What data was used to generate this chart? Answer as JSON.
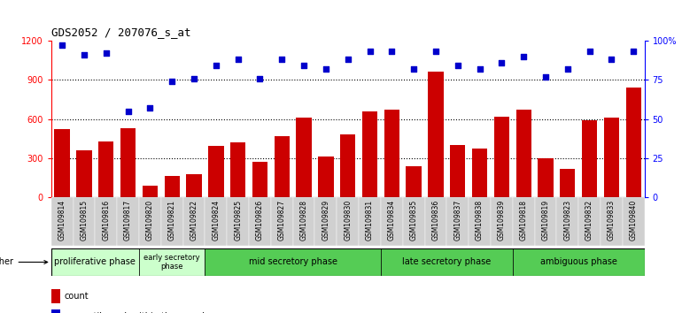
{
  "title": "GDS2052 / 207076_s_at",
  "samples": [
    "GSM109814",
    "GSM109815",
    "GSM109816",
    "GSM109817",
    "GSM109820",
    "GSM109821",
    "GSM109822",
    "GSM109824",
    "GSM109825",
    "GSM109826",
    "GSM109827",
    "GSM109828",
    "GSM109829",
    "GSM109830",
    "GSM109831",
    "GSM109834",
    "GSM109835",
    "GSM109836",
    "GSM109837",
    "GSM109838",
    "GSM109839",
    "GSM109818",
    "GSM109819",
    "GSM109823",
    "GSM109832",
    "GSM109833",
    "GSM109840"
  ],
  "counts": [
    520,
    360,
    430,
    530,
    90,
    160,
    175,
    390,
    420,
    270,
    470,
    610,
    310,
    480,
    660,
    670,
    240,
    960,
    400,
    370,
    620,
    670,
    300,
    220,
    590,
    610,
    840
  ],
  "percentiles": [
    97,
    91,
    92,
    55,
    57,
    74,
    76,
    84,
    88,
    76,
    88,
    84,
    82,
    88,
    93,
    93,
    82,
    93,
    84,
    82,
    86,
    90,
    77,
    82,
    93,
    88,
    93
  ],
  "bar_color": "#cc0000",
  "dot_color": "#0000cc",
  "ylim_left": [
    0,
    1200
  ],
  "ylim_right": [
    0,
    100
  ],
  "yticks_left": [
    0,
    300,
    600,
    900,
    1200
  ],
  "yticks_right": [
    0,
    25,
    50,
    75,
    100
  ],
  "ytick_right_labels": [
    "0",
    "25",
    "50",
    "75",
    "100%"
  ],
  "phases": [
    {
      "label": "proliferative phase",
      "start": 0,
      "end": 4,
      "color": "#ccffcc"
    },
    {
      "label": "early secretory\nphase",
      "start": 4,
      "end": 7,
      "color": "#ccffcc"
    },
    {
      "label": "mid secretory phase",
      "start": 7,
      "end": 15,
      "color": "#55cc55"
    },
    {
      "label": "late secretory phase",
      "start": 15,
      "end": 21,
      "color": "#55cc55"
    },
    {
      "label": "ambiguous phase",
      "start": 21,
      "end": 27,
      "color": "#55cc55"
    }
  ],
  "background_color": "#ffffff",
  "tick_bg_color": "#d0d0d0",
  "grid_dotted_color": "#000000"
}
